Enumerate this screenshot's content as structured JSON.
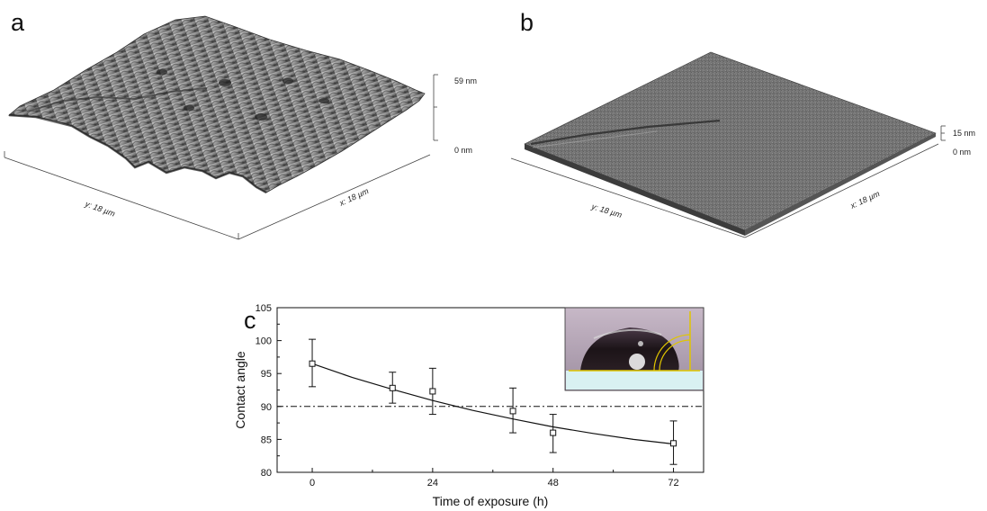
{
  "panels": {
    "a": {
      "letter": "a",
      "y_axis_label": "y: 18 µm",
      "x_axis_label": "x: 18 µm",
      "z_max_label": "59 nm",
      "z_min_label": "0 nm"
    },
    "b": {
      "letter": "b",
      "y_axis_label": "y: 18 µm",
      "x_axis_label": "x: 18 µm",
      "z_max_label": "15 nm",
      "z_min_label": "0 nm"
    },
    "c": {
      "letter": "c"
    }
  },
  "colors": {
    "afm_surface": "#8a8a8a",
    "afm_dark": "#3a3a3a",
    "inset_background": "#b7a6b8",
    "inset_substrate": "#d9f1f2",
    "inset_overlay": "#e0c500",
    "chart_line": "#111111"
  },
  "icons": {
    "inset": "water-droplet-photo"
  },
  "chart_data": {
    "type": "scatter",
    "xlabel": "Time of exposure (h)",
    "ylabel": "Contact angle",
    "xlim": [
      -7,
      78
    ],
    "ylim": [
      80,
      105
    ],
    "x_ticks": [
      0,
      24,
      48,
      72
    ],
    "y_ticks": [
      80,
      85,
      90,
      95,
      100,
      105
    ],
    "x_minor_ticks": [
      12,
      36,
      60
    ],
    "reference_line": {
      "y": 90,
      "style": "dash-dot"
    },
    "points": [
      {
        "x": 0,
        "y": 96.5,
        "err_low": 93,
        "err_high": 100.2
      },
      {
        "x": 16,
        "y": 92.8,
        "err_low": 90.5,
        "err_high": 95.2
      },
      {
        "x": 24,
        "y": 92.3,
        "err_low": 88.8,
        "err_high": 95.8
      },
      {
        "x": 40,
        "y": 89.3,
        "err_low": 86,
        "err_high": 92.8
      },
      {
        "x": 48,
        "y": 86,
        "err_low": 83,
        "err_high": 88.8
      },
      {
        "x": 72,
        "y": 84.4,
        "err_low": 81.2,
        "err_high": 87.8
      }
    ],
    "fit_curve": {
      "x": [
        0,
        8,
        16,
        24,
        32,
        40,
        48,
        56,
        64,
        72
      ],
      "y": [
        96.5,
        94.4,
        92.6,
        90.9,
        89.4,
        88.1,
        86.9,
        85.9,
        85.0,
        84.3
      ]
    },
    "grid": false,
    "legend": "none",
    "inset": "photo-top-right"
  }
}
